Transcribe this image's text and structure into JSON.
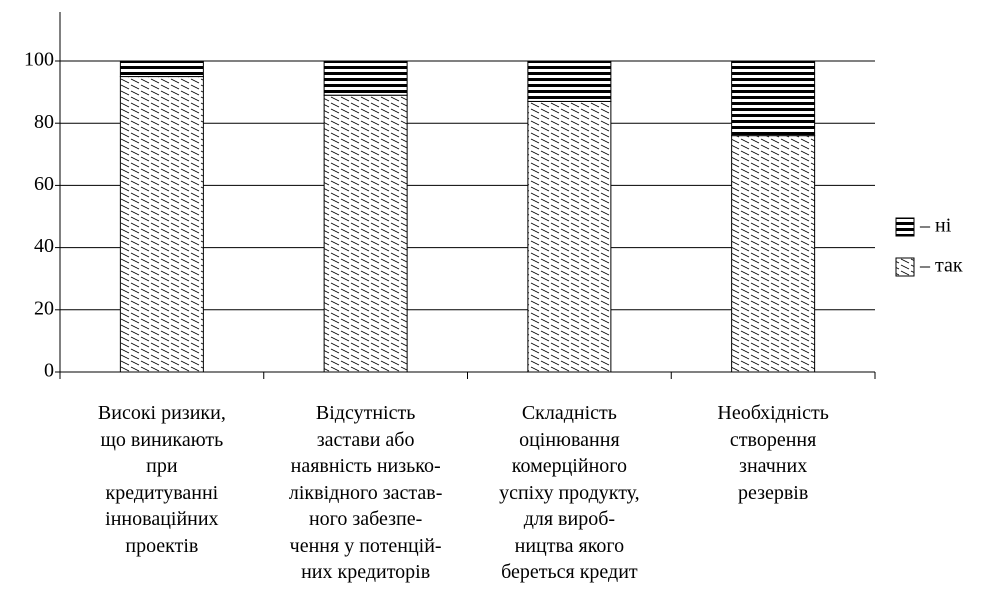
{
  "chart_data": {
    "type": "stacked_bar",
    "categories": [
      "Високі ризики,\nщо виникають\nпри\nкредитуванні\nінноваційних\nпроектів",
      "Відсутність\nзастави або\nнаявність низько-\nліквідного застав-\nного забезпе-\nчення у потенцій-\nних кредиторів",
      "Складність\nоцінювання\nкомерційного\nуспіху продукту,\nдля вироб-\nництва якого\nбереться кредит",
      "Необхідність\nстворення\nзначних\nрезервів"
    ],
    "series": [
      {
        "name": "– так",
        "color": "#000000",
        "pattern": "diagonal",
        "values": [
          95,
          89,
          87,
          76
        ]
      },
      {
        "name": "– ні",
        "color": "#000000",
        "pattern": "horizontal",
        "values": [
          5,
          11,
          13,
          24
        ]
      }
    ],
    "ylim": [
      0,
      100
    ],
    "yticks": [
      0,
      20,
      40,
      60,
      80,
      100
    ],
    "grid": true,
    "legend": "right"
  }
}
